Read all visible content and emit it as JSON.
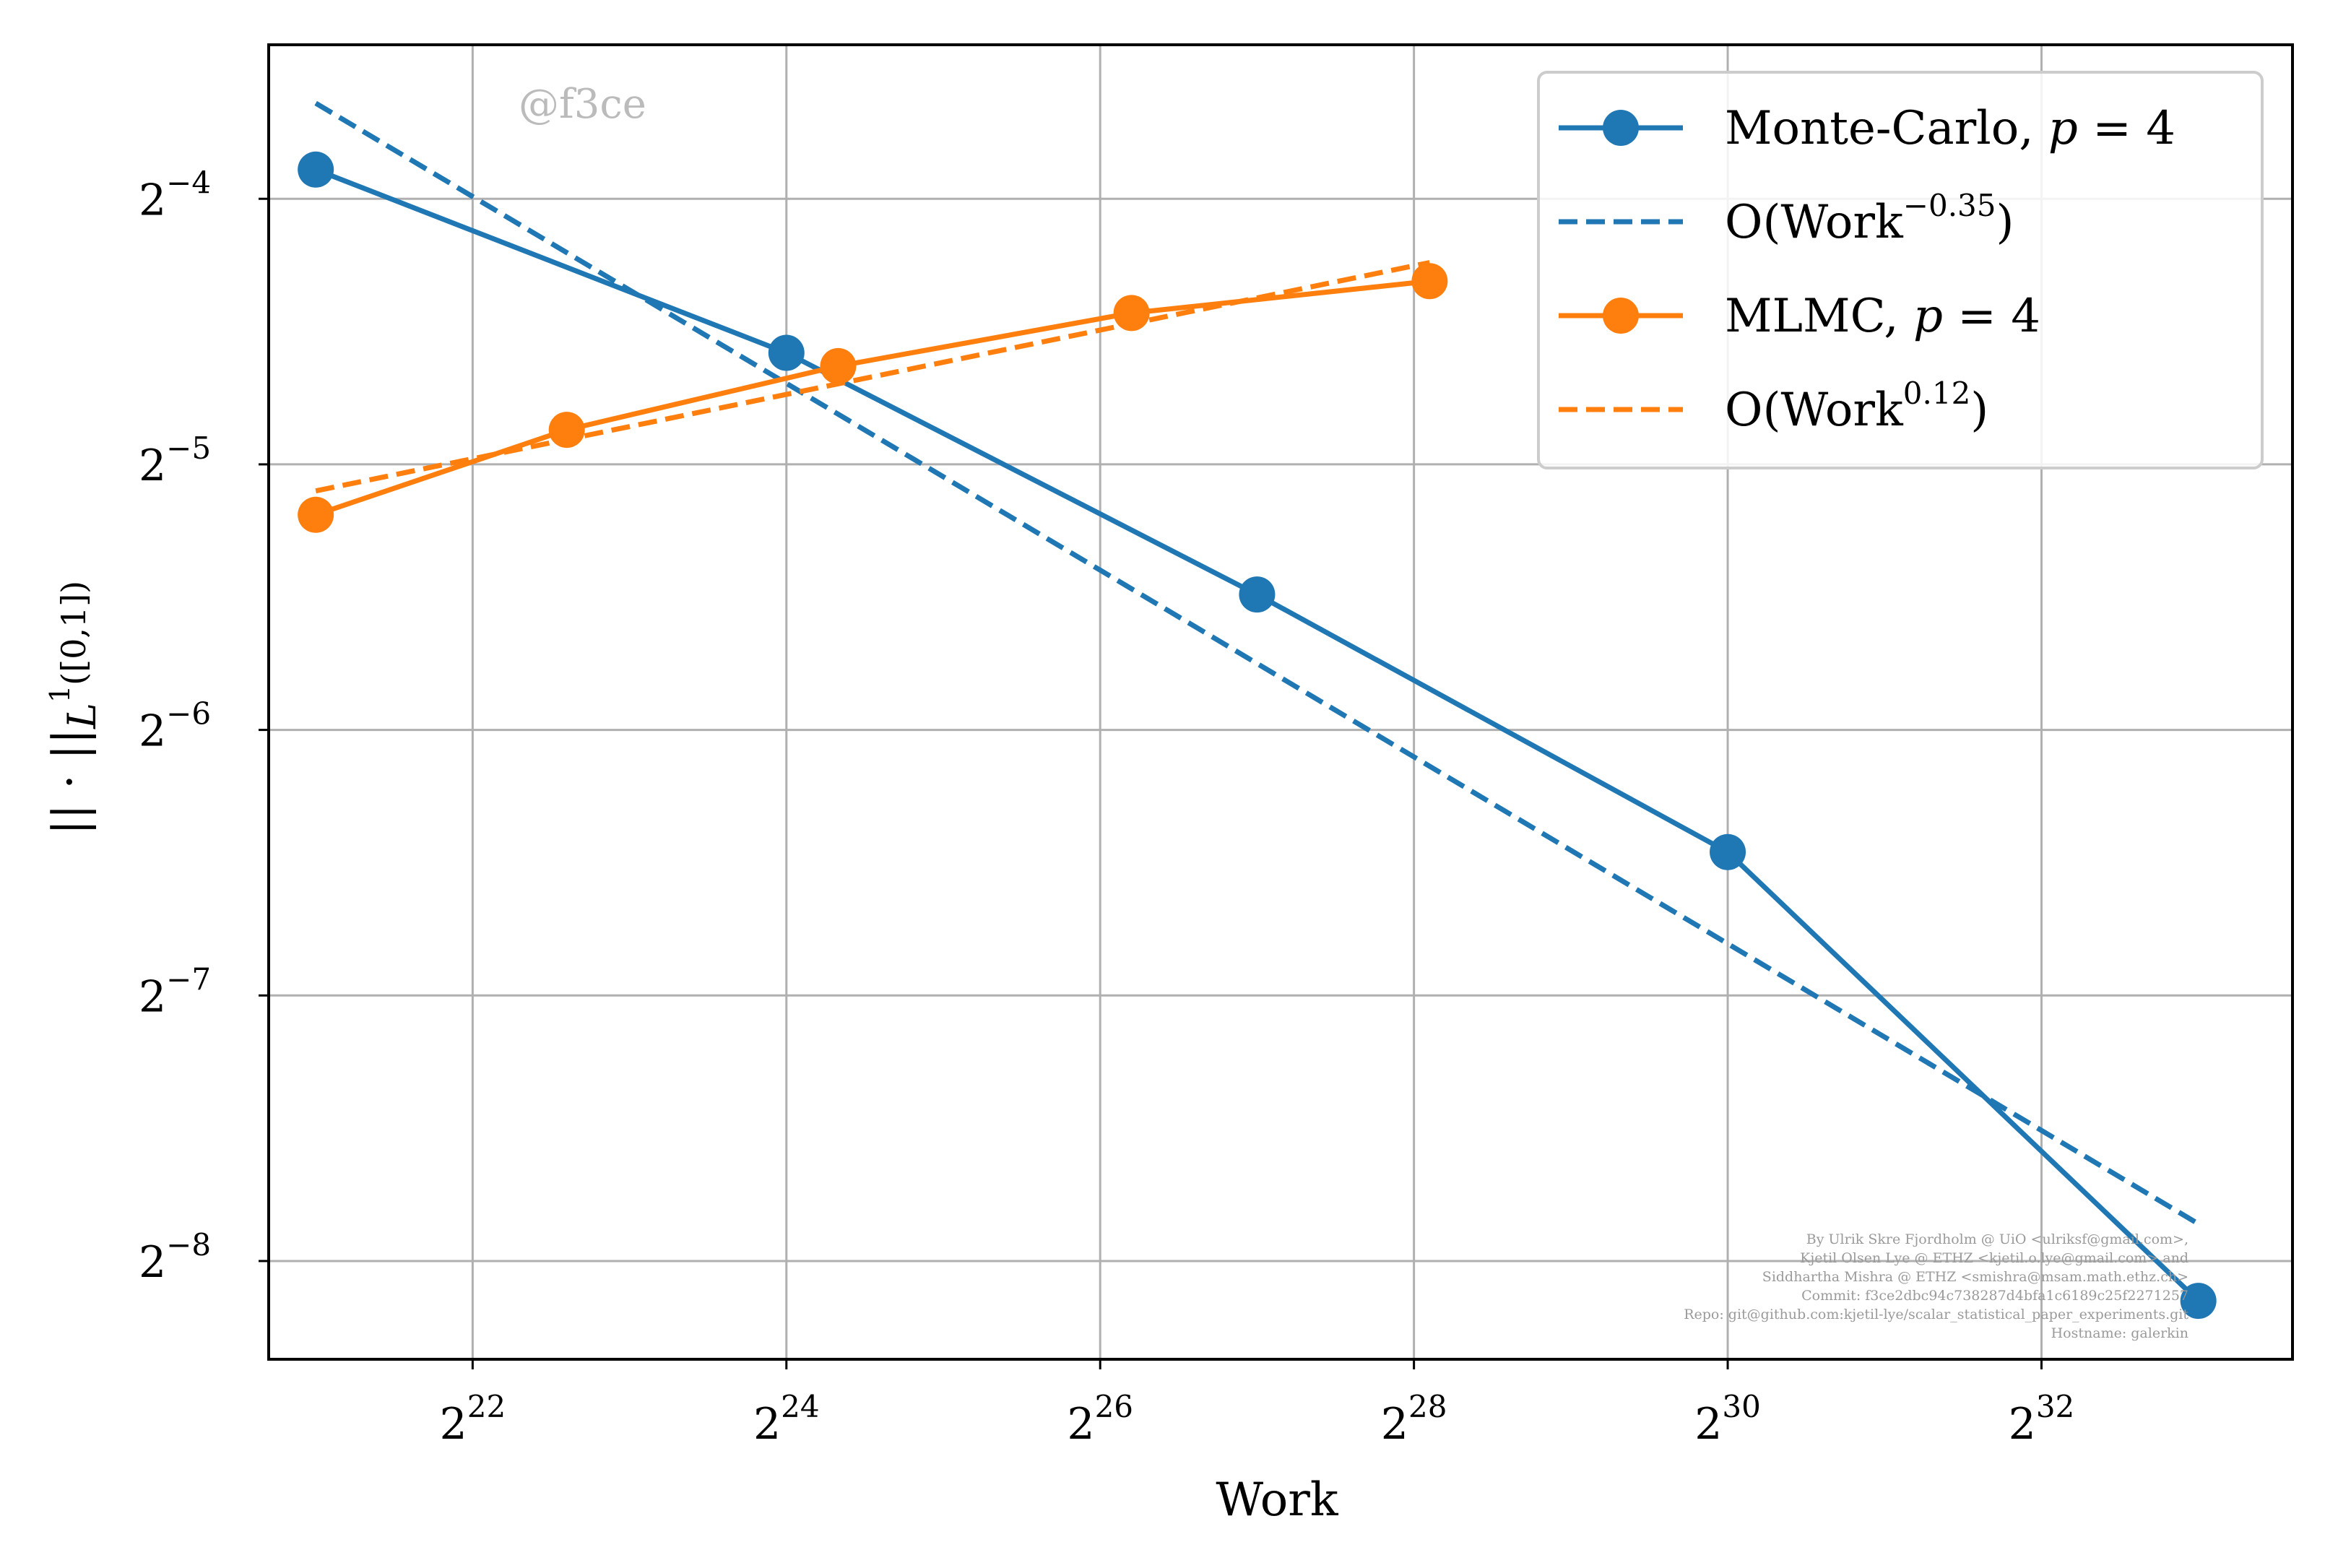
{
  "chart_data": {
    "type": "line",
    "xlabel": "Work",
    "ylabel": "|| · ||",
    "ylabel_sub": "L",
    "ylabel_sup": "1",
    "ylabel_tail": "([0,1])",
    "x_scale": "log2",
    "y_scale": "log2",
    "xlim_log2": [
      20.7,
      33.6
    ],
    "ylim_log2": [
      -8.37,
      -3.42
    ],
    "x_ticks": [
      {
        "base": "2",
        "exp": "22",
        "log2": 22
      },
      {
        "base": "2",
        "exp": "24",
        "log2": 24
      },
      {
        "base": "2",
        "exp": "26",
        "log2": 26
      },
      {
        "base": "2",
        "exp": "28",
        "log2": 28
      },
      {
        "base": "2",
        "exp": "30",
        "log2": 30
      },
      {
        "base": "2",
        "exp": "32",
        "log2": 32
      }
    ],
    "y_ticks": [
      {
        "base": "2",
        "exp": "−4",
        "log2": -4
      },
      {
        "base": "2",
        "exp": "−5",
        "log2": -5
      },
      {
        "base": "2",
        "exp": "−6",
        "log2": -6
      },
      {
        "base": "2",
        "exp": "−7",
        "log2": -7
      },
      {
        "base": "2",
        "exp": "−8",
        "log2": -8
      }
    ],
    "grid": true,
    "legend_position": "top-right",
    "series": [
      {
        "name": "Monte-Carlo, p = 4",
        "legend": {
          "prefix": "Monte-Carlo, ",
          "var": "p",
          "suffix": " = 4"
        },
        "color": "#1f77b4",
        "style": "solid-marker",
        "x_log2": [
          21,
          24,
          27,
          30,
          33
        ],
        "y_log2": [
          -3.89,
          -4.58,
          -5.49,
          -6.46,
          -8.15
        ]
      },
      {
        "name": "O(Work^−0.35)",
        "legend": {
          "prefix": "O(Work",
          "sup": "−0.35",
          "suffix": ")"
        },
        "color": "#1f77b4",
        "style": "dashed",
        "x_log2": [
          21,
          33
        ],
        "y_log2": [
          -3.64,
          -7.86
        ]
      },
      {
        "name": "MLMC, p = 4",
        "legend": {
          "prefix": "MLMC, ",
          "var": "p",
          "suffix": " = 4"
        },
        "color": "#ff7f0e",
        "style": "solid-marker",
        "x_log2": [
          21,
          22.6,
          24.33,
          26.2,
          28.1
        ],
        "y_log2": [
          -5.19,
          -4.87,
          -4.63,
          -4.43,
          -4.31
        ]
      },
      {
        "name": "O(Work^0.12)",
        "legend": {
          "prefix": "O(Work",
          "sup": "0.12",
          "suffix": ")"
        },
        "color": "#ff7f0e",
        "style": "dashed",
        "x_log2": [
          21,
          28.1
        ],
        "y_log2": [
          -5.1,
          -4.24
        ]
      }
    ]
  },
  "watermark": "@f3ce",
  "credits": [
    "By Ulrik Skre Fjordholm @ UiO <ulriksf@gmail.com>,",
    "Kjetil Olsen Lye @ ETHZ <kjetil.o.lye@gmail.com> and",
    "Siddhartha Mishra @ ETHZ <smishra@msam.math.ethz.ch>",
    "Commit: f3ce2dbc94c738287d4bfa1c6189c25f2271257",
    "Repo: git@github.com:kjetil-lye/scalar_statistical_paper_experiments.git",
    "Hostname: galerkin"
  ]
}
